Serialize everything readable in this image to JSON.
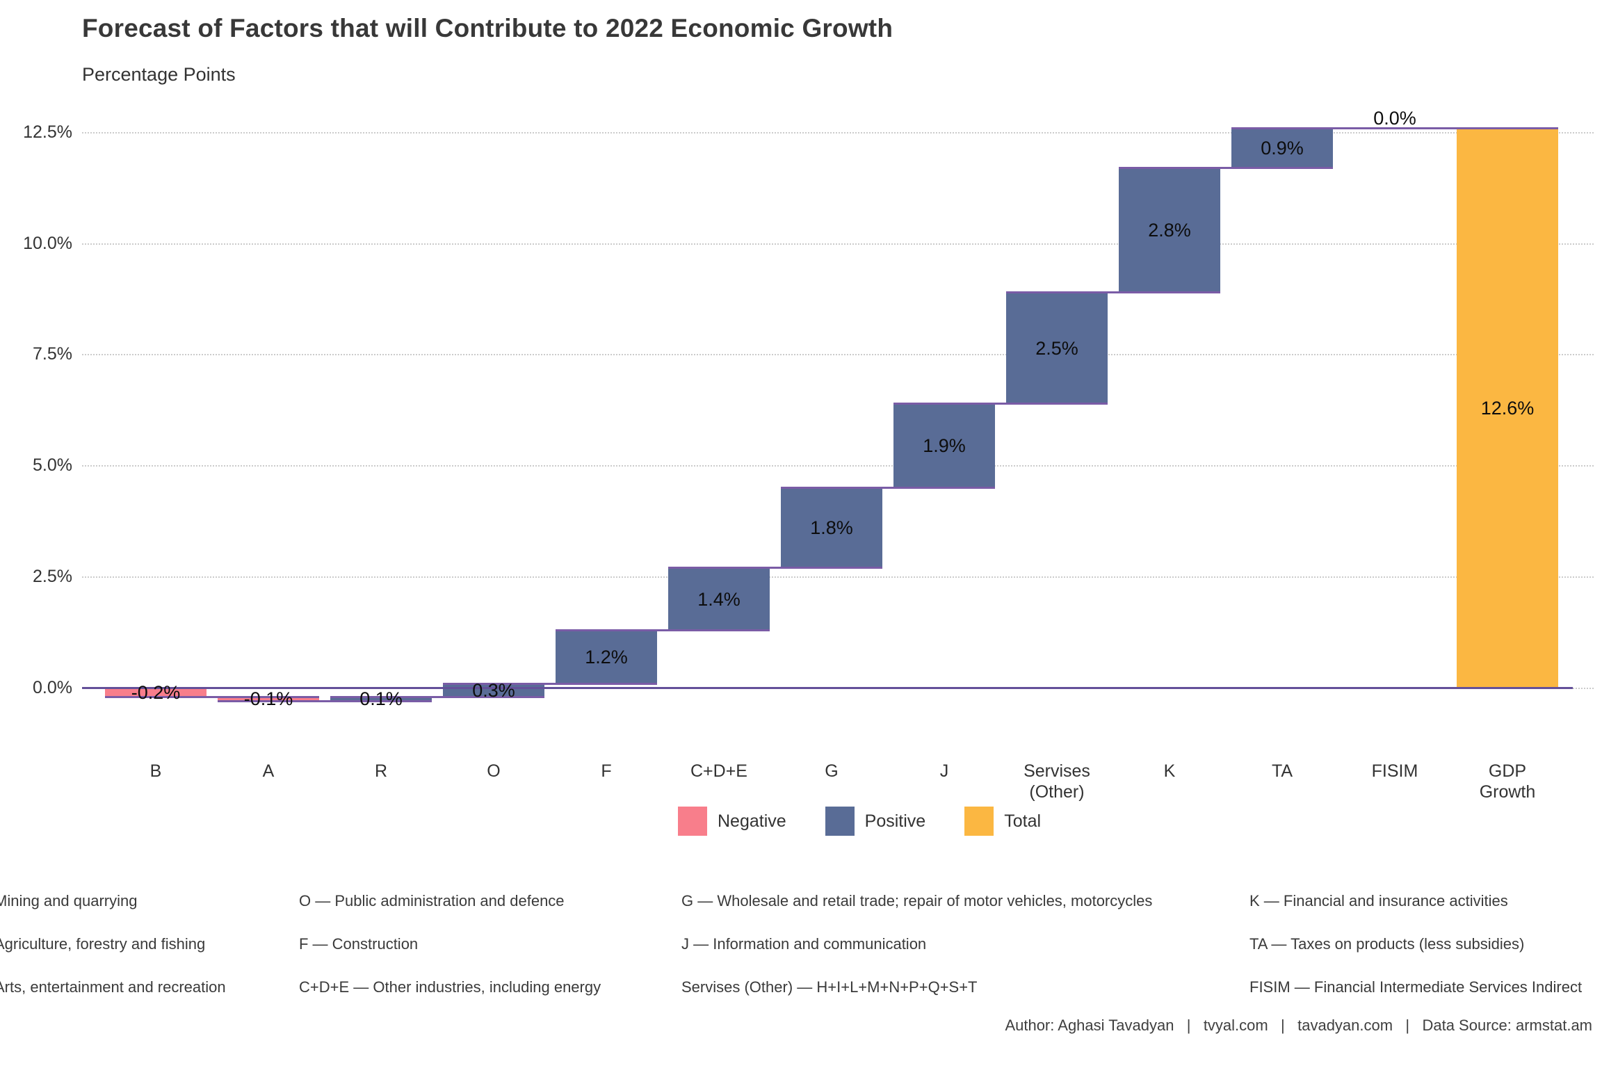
{
  "header": {
    "title": "Forecast of Factors that will Contribute to 2022 Economic Growth",
    "subtitle": "Percentage Points"
  },
  "chart_data": {
    "type": "bar",
    "subtype": "waterfall",
    "title": "Forecast of Factors that will Contribute to 2022 Economic Growth",
    "ylabel": "Percentage Points",
    "xlabel": "",
    "categories": [
      "B",
      "A",
      "R",
      "O",
      "F",
      "C+D+E",
      "G",
      "J",
      "Servises\n(Other)",
      "K",
      "TA",
      "FISIM",
      "GDP\nGrowth"
    ],
    "values": [
      -0.2,
      -0.1,
      0.1,
      0.3,
      1.2,
      1.4,
      1.8,
      1.9,
      2.5,
      2.8,
      0.9,
      0.0,
      12.6
    ],
    "labels": [
      "-0.2%",
      "-0.1%",
      "0.1%",
      "0.3%",
      "1.2%",
      "1.4%",
      "1.8%",
      "1.9%",
      "2.5%",
      "2.8%",
      "0.9%",
      "0.0%",
      "12.6%"
    ],
    "kinds": [
      "negative",
      "negative",
      "positive",
      "positive",
      "positive",
      "positive",
      "positive",
      "positive",
      "positive",
      "positive",
      "positive",
      "positive",
      "total"
    ],
    "y_ticks": [
      "0.0%",
      "2.5%",
      "5.0%",
      "7.5%",
      "10.0%",
      "12.5%"
    ],
    "y_tick_values": [
      0,
      2.5,
      5,
      7.5,
      10,
      12.5
    ],
    "ylim": [
      -0.5,
      13
    ],
    "grid": "horizontal-dotted",
    "legend_position": "bottom-center",
    "legend": [
      {
        "label": "Negative",
        "color": "#f87e8b"
      },
      {
        "label": "Positive",
        "color": "#596c96"
      },
      {
        "label": "Total",
        "color": "#fbb742"
      }
    ],
    "colors": {
      "negative": "#f87e8b",
      "positive": "#596c96",
      "total": "#fbb742",
      "connector": "#7a5ca6",
      "axis": "#645099"
    }
  },
  "footnotes": {
    "columns": [
      {
        "items": [
          "Mining and quarrying",
          "Agriculture, forestry and fishing",
          "Arts, entertainment and recreation"
        ]
      },
      {
        "items": [
          "O — Public administration and defence",
          "F — Construction",
          "C+D+E — Other industries, including energy"
        ]
      },
      {
        "items": [
          "G — Wholesale and retail trade; repair of motor vehicles, motorcycles",
          "J — Information and communication",
          "Servises (Other) — H+I+L+M+N+P+Q+S+T"
        ]
      },
      {
        "items": [
          "K — Financial and insurance activities",
          "TA — Taxes on products (less subsidies)",
          "FISIM — Financial Intermediate Services Indirect"
        ]
      }
    ]
  },
  "footer": {
    "credits": "Author: Aghasi Tavadyan   |   tvyal.com   |   tavadyan.com   |   Data Source: armstat.am"
  }
}
